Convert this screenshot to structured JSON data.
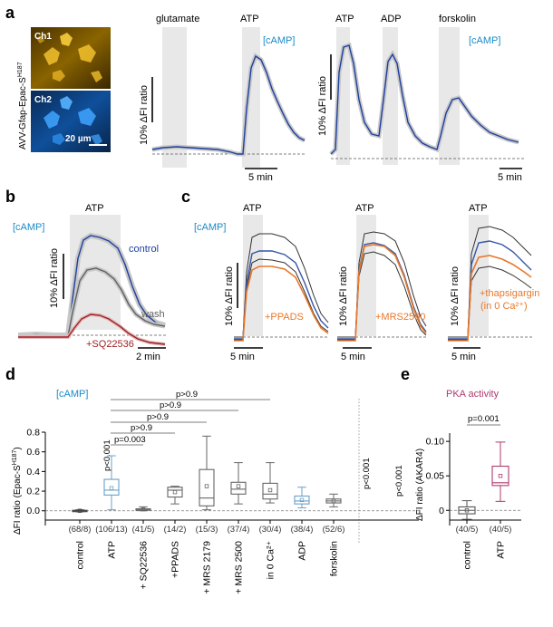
{
  "panels": {
    "a": "a",
    "b": "b",
    "c": "c",
    "d": "d",
    "e": "e"
  },
  "panel_a": {
    "vertical_label": "AVV-Gfap-Epac-S",
    "vertical_label_sup": "H187",
    "ch1": "Ch1",
    "ch2": "Ch2",
    "scalebar_micro": "20 µm",
    "trace1": {
      "stimuli": [
        "glutamate",
        "ATP"
      ],
      "signal": "[cAMP]",
      "ylabel": "10% ΔFI ratio",
      "time_scale": "5 min"
    },
    "trace2": {
      "stimuli": [
        "ATP",
        "ADP",
        "forskolin"
      ],
      "signal": "[cAMP]",
      "ylabel": "10% ΔFI ratio",
      "time_scale": "5 min"
    }
  },
  "panel_b": {
    "stimulus": "ATP",
    "signal": "[cAMP]",
    "ylabel": "10% ΔFI ratio",
    "time_scale": "2 min",
    "series": [
      "control",
      "wash",
      "+SQ22536"
    ]
  },
  "panel_c": {
    "signal": "[cAMP]",
    "ylabel": "10% ΔFI ratio",
    "time_scale": "5 min",
    "subpanels": [
      {
        "stimulus": "ATP",
        "label": "+PPADS"
      },
      {
        "stimulus": "ATP",
        "label": "+MRS2500"
      },
      {
        "stimulus": "ATP",
        "label": "+thapsigargin",
        "label2": "(in 0 Ca²⁺)"
      }
    ]
  },
  "panel_d": {
    "signal": "[cAMP]",
    "ylabel": "ΔFI ratio (Epac-S",
    "ylabel_sup": "H187",
    "ylabel_end": ")",
    "comparisons": [
      "p>0.9",
      "p>0.9",
      "p>0.9",
      "p>0.9",
      "p=0.003"
    ],
    "pvalues_vertical": [
      "p<0.001",
      "p<0.001",
      "p<0.001"
    ]
  },
  "panel_e": {
    "title": "PKA activity",
    "ylabel": "ΔFI ratio (AKAR4)",
    "comparison": "p=0.001"
  },
  "chart_data": [
    {
      "type": "box",
      "ylim": [
        -0.15,
        0.8
      ],
      "yticks": [
        "-0.2",
        "0.0",
        "0.2",
        "0.4",
        "0.6",
        "0.8"
      ],
      "categories": [
        "control",
        "ATP",
        "+ SQ22536",
        "+PPADS",
        "+ MRS 2179",
        "+ MRS 2500",
        "in 0 Ca²⁺",
        "ADP",
        "forskolin"
      ],
      "counts": [
        "(68/8)",
        "(106/13)",
        "(41/5)",
        "(14/2)",
        "(15/3)",
        "(37/4)",
        "(30/4)",
        "(38/4)",
        "(52/6)"
      ],
      "boxes": [
        {
          "min": -0.01,
          "q1": -0.005,
          "median": 0.0,
          "q3": 0.005,
          "max": 0.01,
          "mean": 0.0
        },
        {
          "min": 0.01,
          "q1": 0.16,
          "median": 0.21,
          "q3": 0.32,
          "max": 0.56,
          "mean": 0.23
        },
        {
          "min": 0.0,
          "q1": 0.005,
          "median": 0.01,
          "q3": 0.02,
          "max": 0.04,
          "mean": 0.015
        },
        {
          "min": 0.07,
          "q1": 0.14,
          "median": 0.21,
          "q3": 0.24,
          "max": 0.25,
          "mean": 0.19
        },
        {
          "min": 0.01,
          "q1": 0.05,
          "median": 0.13,
          "q3": 0.42,
          "max": 0.76,
          "mean": 0.25
        },
        {
          "min": 0.07,
          "q1": 0.17,
          "median": 0.22,
          "q3": 0.29,
          "max": 0.49,
          "mean": 0.25
        },
        {
          "min": 0.08,
          "q1": 0.12,
          "median": 0.17,
          "q3": 0.28,
          "max": 0.49,
          "mean": 0.21
        },
        {
          "min": 0.03,
          "q1": 0.07,
          "median": 0.1,
          "q3": 0.15,
          "max": 0.24,
          "mean": 0.11
        },
        {
          "min": 0.04,
          "q1": 0.08,
          "median": 0.1,
          "q3": 0.12,
          "max": 0.17,
          "mean": 0.1
        }
      ]
    },
    {
      "type": "box",
      "ylim": [
        -0.022,
        0.112
      ],
      "yticks": [
        "0",
        "0.05",
        "0.10"
      ],
      "categories": [
        "control",
        "ATP"
      ],
      "counts": [
        "(40/5)",
        "(40/5)"
      ],
      "boxes": [
        {
          "min": -0.013,
          "q1": -0.005,
          "median": 0.0,
          "q3": 0.005,
          "max": 0.014,
          "mean": 0.0
        },
        {
          "min": 0.013,
          "q1": 0.036,
          "median": 0.04,
          "q3": 0.064,
          "max": 0.099,
          "mean": 0.05
        }
      ]
    }
  ]
}
